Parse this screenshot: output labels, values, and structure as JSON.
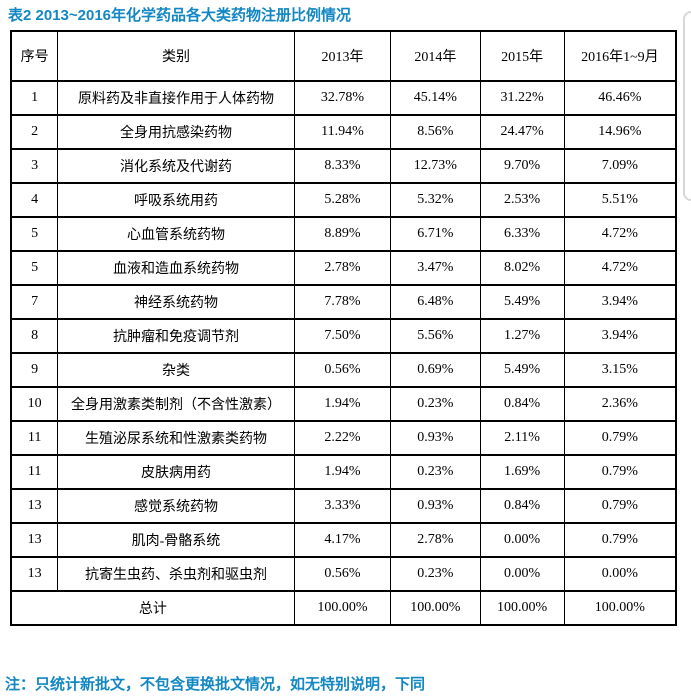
{
  "title": "表2 2013~2016年化学药品各大类药物注册比例情况",
  "note": "注：只统计新批文，不包含更换批文情况，如无特别说明，下同",
  "colors": {
    "accent_blue": "#1287c4",
    "table_border": "#000000",
    "panel_gray": "#d8d8d8"
  },
  "table": {
    "headers": [
      "序号",
      "类别",
      "2013年",
      "2014年",
      "2015年",
      "2016年1~9月"
    ],
    "rows": [
      [
        "1",
        "原料药及非直接作用于人体药物",
        "32.78%",
        "45.14%",
        "31.22%",
        "46.46%"
      ],
      [
        "2",
        "全身用抗感染药物",
        "11.94%",
        "8.56%",
        "24.47%",
        "14.96%"
      ],
      [
        "3",
        "消化系统及代谢药",
        "8.33%",
        "12.73%",
        "9.70%",
        "7.09%"
      ],
      [
        "4",
        "呼吸系统用药",
        "5.28%",
        "5.32%",
        "2.53%",
        "5.51%"
      ],
      [
        "5",
        "心血管系统药物",
        "8.89%",
        "6.71%",
        "6.33%",
        "4.72%"
      ],
      [
        "5",
        "血液和造血系统药物",
        "2.78%",
        "3.47%",
        "8.02%",
        "4.72%"
      ],
      [
        "7",
        "神经系统药物",
        "7.78%",
        "6.48%",
        "5.49%",
        "3.94%"
      ],
      [
        "8",
        "抗肿瘤和免疫调节剂",
        "7.50%",
        "5.56%",
        "1.27%",
        "3.94%"
      ],
      [
        "9",
        "杂类",
        "0.56%",
        "0.69%",
        "5.49%",
        "3.15%"
      ],
      [
        "10",
        "全身用激素类制剂（不含性激素）",
        "1.94%",
        "0.23%",
        "0.84%",
        "2.36%"
      ],
      [
        "11",
        "生殖泌尿系统和性激素类药物",
        "2.22%",
        "0.93%",
        "2.11%",
        "0.79%"
      ],
      [
        "11",
        "皮肤病用药",
        "1.94%",
        "0.23%",
        "1.69%",
        "0.79%"
      ],
      [
        "13",
        "感觉系统药物",
        "3.33%",
        "0.93%",
        "0.84%",
        "0.79%"
      ],
      [
        "13",
        "肌肉-骨骼系统",
        "4.17%",
        "2.78%",
        "0.00%",
        "0.79%"
      ],
      [
        "13",
        "抗寄生虫药、杀虫剂和驱虫剂",
        "0.56%",
        "0.23%",
        "0.00%",
        "0.00%"
      ]
    ],
    "total": {
      "label": "总计",
      "values": [
        "100.00%",
        "100.00%",
        "100.00%",
        "100.00%"
      ]
    }
  }
}
